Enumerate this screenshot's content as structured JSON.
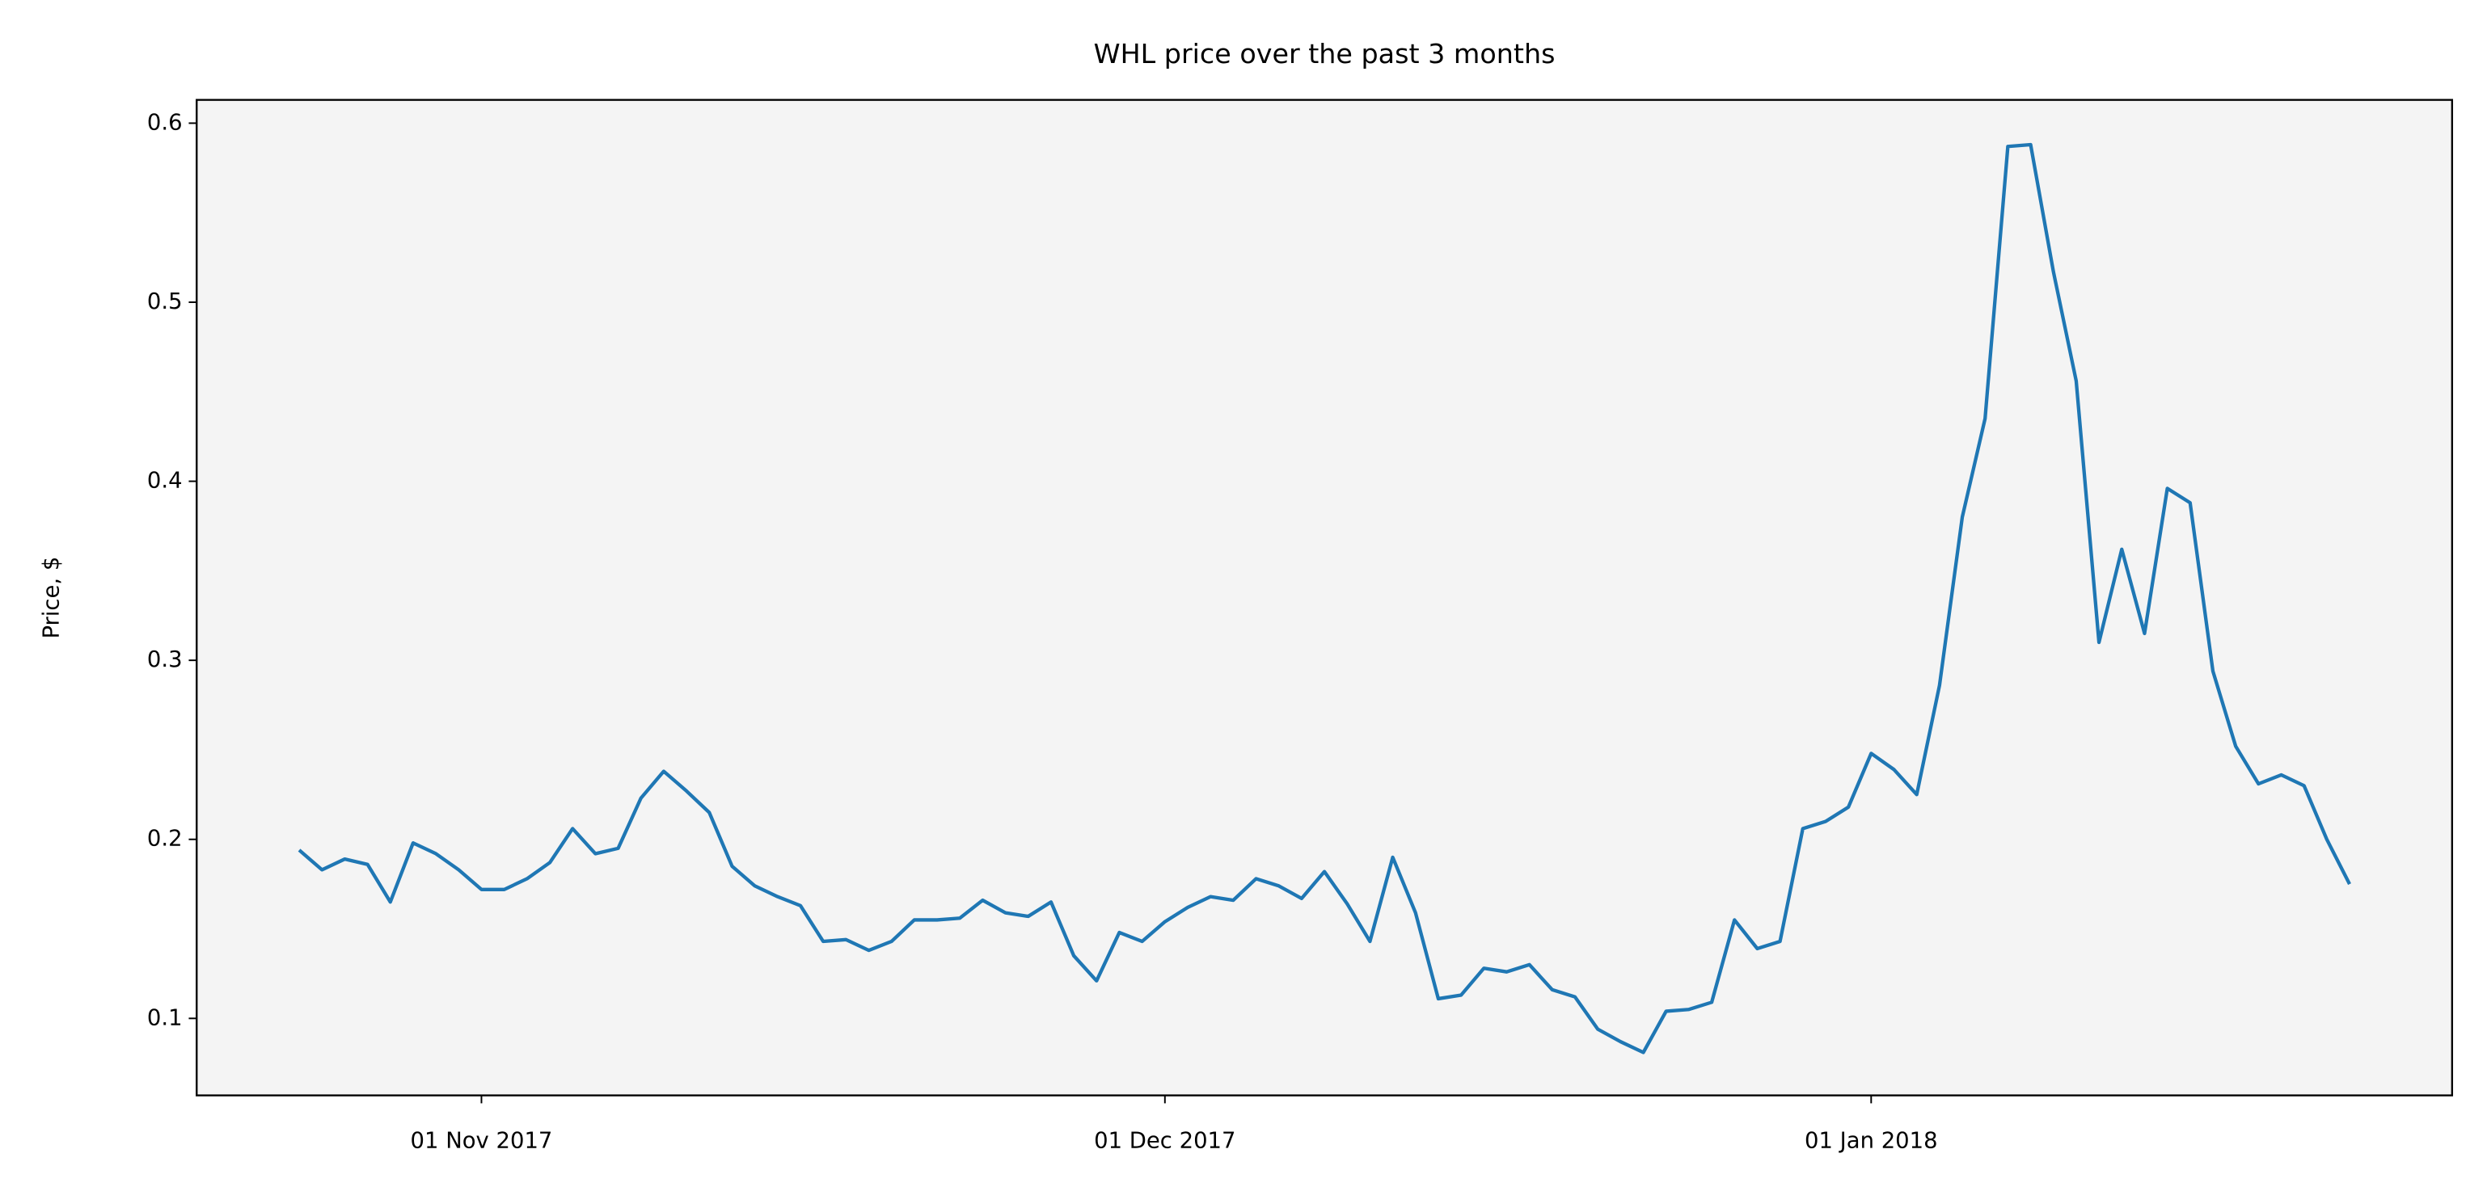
{
  "chart_data": {
    "type": "line",
    "title": "WHL price over the past 3 months",
    "y_label": "Price, $",
    "color": "#1f77b4",
    "background": "#f4f4f4",
    "x": [
      "2017-10-24",
      "2017-10-25",
      "2017-10-26",
      "2017-10-27",
      "2017-10-28",
      "2017-10-29",
      "2017-10-30",
      "2017-10-31",
      "2017-11-01",
      "2017-11-02",
      "2017-11-03",
      "2017-11-04",
      "2017-11-05",
      "2017-11-06",
      "2017-11-07",
      "2017-11-08",
      "2017-11-09",
      "2017-11-10",
      "2017-11-11",
      "2017-11-12",
      "2017-11-13",
      "2017-11-14",
      "2017-11-15",
      "2017-11-16",
      "2017-11-17",
      "2017-11-18",
      "2017-11-19",
      "2017-11-20",
      "2017-11-21",
      "2017-11-22",
      "2017-11-23",
      "2017-11-24",
      "2017-11-25",
      "2017-11-26",
      "2017-11-27",
      "2017-11-28",
      "2017-11-29",
      "2017-11-30",
      "2017-12-01",
      "2017-12-02",
      "2017-12-03",
      "2017-12-04",
      "2017-12-05",
      "2017-12-06",
      "2017-12-07",
      "2017-12-08",
      "2017-12-09",
      "2017-12-10",
      "2017-12-11",
      "2017-12-12",
      "2017-12-13",
      "2017-12-14",
      "2017-12-15",
      "2017-12-16",
      "2017-12-17",
      "2017-12-18",
      "2017-12-19",
      "2017-12-20",
      "2017-12-21",
      "2017-12-22",
      "2017-12-23",
      "2017-12-24",
      "2017-12-25",
      "2017-12-26",
      "2017-12-27",
      "2017-12-28",
      "2017-12-29",
      "2017-12-30",
      "2017-12-31",
      "2018-01-01",
      "2018-01-02",
      "2018-01-03",
      "2018-01-04",
      "2018-01-05",
      "2018-01-06",
      "2018-01-07",
      "2018-01-08",
      "2018-01-09",
      "2018-01-10",
      "2018-01-11",
      "2018-01-12",
      "2018-01-13",
      "2018-01-14",
      "2018-01-15",
      "2018-01-16",
      "2018-01-17",
      "2018-01-18",
      "2018-01-19",
      "2018-01-20",
      "2018-01-21",
      "2018-01-22"
    ],
    "values": [
      0.194,
      0.183,
      0.189,
      0.186,
      0.165,
      0.198,
      0.192,
      0.183,
      0.172,
      0.172,
      0.178,
      0.187,
      0.206,
      0.192,
      0.195,
      0.223,
      0.238,
      0.227,
      0.215,
      0.185,
      0.174,
      0.168,
      0.163,
      0.143,
      0.144,
      0.138,
      0.143,
      0.155,
      0.155,
      0.156,
      0.166,
      0.159,
      0.157,
      0.165,
      0.135,
      0.121,
      0.148,
      0.143,
      0.154,
      0.162,
      0.168,
      0.166,
      0.178,
      0.174,
      0.167,
      0.182,
      0.164,
      0.143,
      0.19,
      0.159,
      0.111,
      0.113,
      0.128,
      0.126,
      0.13,
      0.116,
      0.112,
      0.094,
      0.087,
      0.081,
      0.104,
      0.105,
      0.109,
      0.155,
      0.139,
      0.143,
      0.206,
      0.21,
      0.218,
      0.248,
      0.239,
      0.225,
      0.286,
      0.38,
      0.435,
      0.587,
      0.588,
      0.517,
      0.456,
      0.31,
      0.362,
      0.315,
      0.396,
      0.388,
      0.294,
      0.252,
      0.231,
      0.236,
      0.23,
      0.2,
      0.175
    ],
    "xlim": [
      "2017-10-19T12:00:00",
      "2018-01-26T12:00:00"
    ],
    "xticks": [
      {
        "value": "2017-11-01",
        "label": "01 Nov 2017"
      },
      {
        "value": "2017-12-01",
        "label": "01 Dec 2017"
      },
      {
        "value": "2018-01-01",
        "label": "01 Jan 2018"
      }
    ],
    "ylim": [
      0.057,
      0.613
    ],
    "yticks": [
      0.1,
      0.2,
      0.3,
      0.4,
      0.5,
      0.6
    ]
  }
}
